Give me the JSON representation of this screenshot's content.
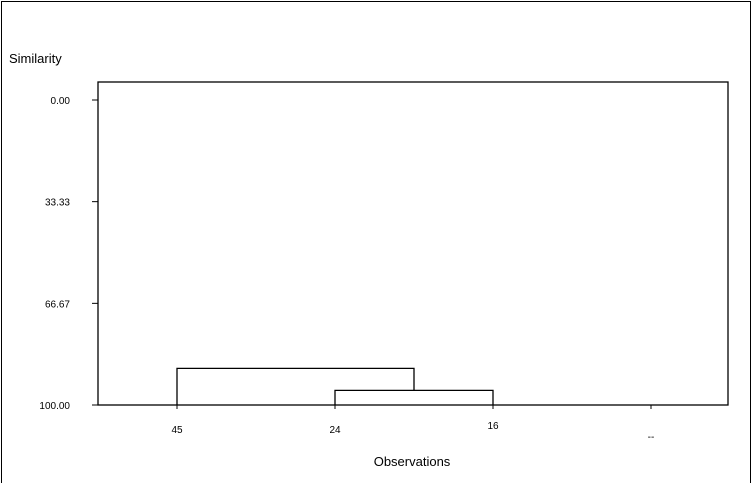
{
  "chart_data": {
    "type": "dendrogram",
    "title": "",
    "ylabel": "Similarity",
    "xlabel": "Observations",
    "ylim": [
      0,
      100
    ],
    "y_ticks": [
      "0.00",
      "33.33",
      "66.67",
      "100.00"
    ],
    "observations": [
      "45",
      "24",
      "16",
      "--"
    ],
    "merges": [
      {
        "left": "24",
        "right": "16",
        "similarity": 95.2
      },
      {
        "left": "45",
        "right": "24-16",
        "similarity": 88.0
      }
    ],
    "grid": false
  }
}
